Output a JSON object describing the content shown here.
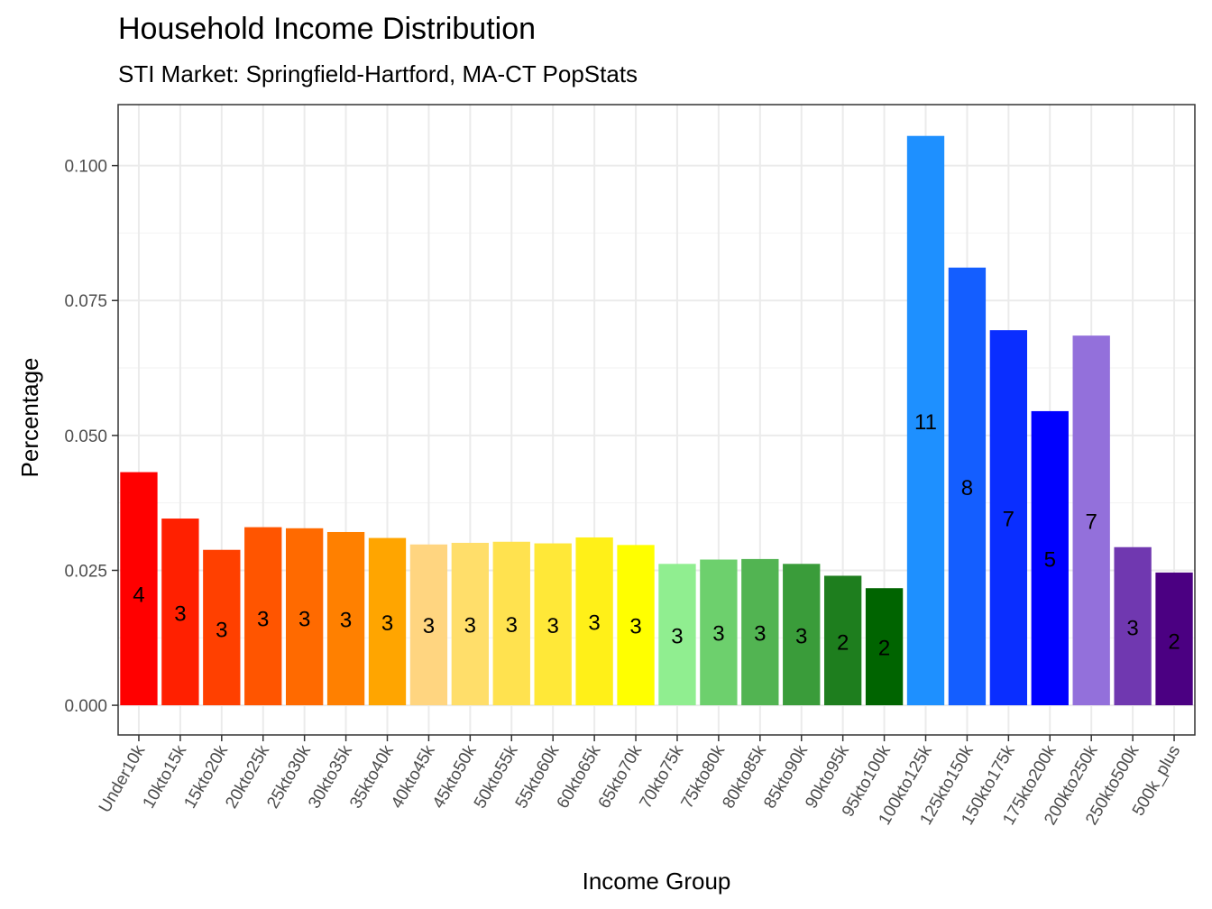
{
  "chart_data": {
    "type": "bar",
    "title": "Household Income Distribution",
    "subtitle": "STI Market: Springfield-Hartford, MA-CT PopStats",
    "xlabel": "Income Group",
    "ylabel": "Percentage",
    "ylim": [
      -0.0055,
      0.1113
    ],
    "yticks": [
      0.0,
      0.025,
      0.05,
      0.075,
      0.1
    ],
    "ytick_labels": [
      "0.000",
      "0.025",
      "0.050",
      "0.075",
      "0.100"
    ],
    "grid": true,
    "legend": "none",
    "categories": [
      "Under10k",
      "10kto15k",
      "15kto20k",
      "20kto25k",
      "25kto30k",
      "30kto35k",
      "35kto40k",
      "40kto45k",
      "45kto50k",
      "50kto55k",
      "55kto60k",
      "60kto65k",
      "65kto70k",
      "70kto75k",
      "75kto80k",
      "80kto85k",
      "85kto90k",
      "90kto95k",
      "95kto100k",
      "100kto125k",
      "125kto150k",
      "150kto175k",
      "175kto200k",
      "200kto250k",
      "250kto500k",
      "500k_plus"
    ],
    "values": [
      0.0432,
      0.0346,
      0.0288,
      0.033,
      0.0328,
      0.0321,
      0.031,
      0.0298,
      0.0301,
      0.0303,
      0.03,
      0.0311,
      0.0297,
      0.0262,
      0.027,
      0.0271,
      0.0262,
      0.024,
      0.0217,
      0.1055,
      0.0811,
      0.0695,
      0.0545,
      0.0685,
      0.0293,
      0.0246
    ],
    "labels": [
      "4",
      "3",
      "3",
      "3",
      "3",
      "3",
      "3",
      "3",
      "3",
      "3",
      "3",
      "3",
      "3",
      "3",
      "3",
      "3",
      "3",
      "2",
      "2",
      "11",
      "8",
      "7",
      "5",
      "7",
      "3",
      "2"
    ],
    "label_y": [
      0.0205,
      0.017,
      0.014,
      0.016,
      0.016,
      0.0158,
      0.0152,
      0.0147,
      0.0148,
      0.0149,
      0.0147,
      0.0153,
      0.0146,
      0.0128,
      0.0133,
      0.0133,
      0.0128,
      0.0116,
      0.0106,
      0.0525,
      0.0403,
      0.0345,
      0.027,
      0.034,
      0.0143,
      0.0118
    ],
    "colors": [
      "#FF0000",
      "#FF2000",
      "#FF4000",
      "#FF5500",
      "#FF6A00",
      "#FF8000",
      "#FFA500",
      "#FFD580",
      "#FFDE6A",
      "#FFE24F",
      "#FFE838",
      "#FFF018",
      "#FFFF00",
      "#90EE90",
      "#6DD06D",
      "#52B452",
      "#3A9C3A",
      "#1E7E1E",
      "#006400",
      "#1E90FF",
      "#145EFF",
      "#0A2EFF",
      "#0000FF",
      "#9370DB",
      "#7038B0",
      "#4B0082"
    ]
  }
}
